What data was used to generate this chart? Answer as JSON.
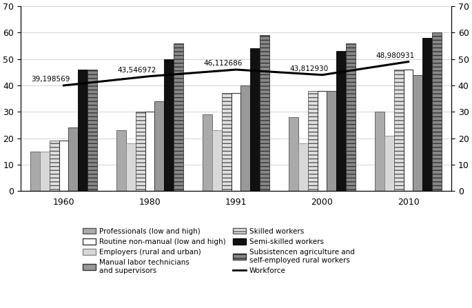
{
  "year_labels": [
    "1960",
    "1980",
    "1991",
    "2000",
    "2010"
  ],
  "bar_values": {
    "professionals": [
      15,
      23,
      29,
      28,
      30
    ],
    "employers": [
      15,
      18,
      23,
      18,
      21
    ],
    "skilled": [
      19,
      30,
      37,
      38,
      46
    ],
    "subsistence": [
      46,
      56,
      59,
      56,
      60
    ],
    "routine": [
      19,
      30,
      37,
      38,
      46
    ],
    "manual_tech": [
      24,
      34,
      40,
      38,
      44
    ],
    "semiskilled": [
      46,
      50,
      54,
      53,
      58
    ]
  },
  "workforce_y": [
    40,
    43.5,
    46,
    44,
    49
  ],
  "workforce_labels": [
    "39,198569",
    "43,546972",
    "46,112686",
    "43,812930",
    "48,980931"
  ],
  "ylim": [
    0,
    70
  ],
  "yticks": [
    0,
    10,
    20,
    30,
    40,
    50,
    60,
    70
  ],
  "bar_width": 0.11,
  "tick_fontsize": 9,
  "legend_fontsize": 7.5,
  "bar_styles": {
    "professionals": {
      "color": "#aaaaaa",
      "edgecolor": "#555555",
      "hatch": null,
      "lw": 0.6
    },
    "employers": {
      "color": "#d8d8d8",
      "edgecolor": "#888888",
      "hatch": null,
      "lw": 0.6
    },
    "skilled": {
      "color": "#e0e0e0",
      "edgecolor": "#555555",
      "hatch": "---",
      "lw": 0.6
    },
    "subsistence": {
      "color": "#888888",
      "edgecolor": "#333333",
      "hatch": "---",
      "lw": 0.6
    },
    "routine": {
      "color": "#ffffff",
      "edgecolor": "#333333",
      "hatch": null,
      "lw": 0.8
    },
    "manual_tech": {
      "color": "#999999",
      "edgecolor": "#333333",
      "hatch": null,
      "lw": 0.6
    },
    "semiskilled": {
      "color": "#111111",
      "edgecolor": "#000000",
      "hatch": null,
      "lw": 0.6
    }
  },
  "legend_labels": {
    "professionals": "Professionals (low and high)",
    "employers": "Employers (rural and urban)",
    "skilled": "Skilled workers",
    "subsistence": "Subsistencen agriculture and\nself-employed rural workers",
    "routine": "Routine non-manual (low and high)",
    "manual_tech": "Manual labor technicians\nand supervisors",
    "semiskilled": "Semi-skilled workers",
    "workforce": "Workforce"
  }
}
